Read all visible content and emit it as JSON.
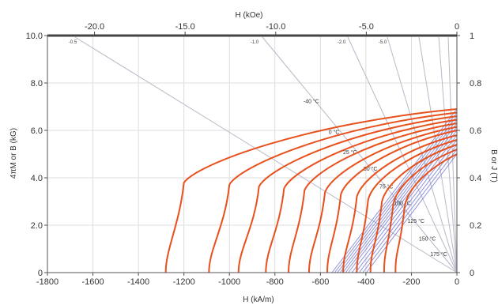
{
  "chart_data": {
    "type": "line",
    "title": "",
    "axes": {
      "x_bottom": {
        "label": "H (kA/m)",
        "ticks": [
          "-1800",
          "-1600",
          "-1400",
          "-1200",
          "-1000",
          "-800",
          "-600",
          "-400",
          "-200",
          "0"
        ],
        "range": [
          -1800,
          0
        ]
      },
      "x_top": {
        "label": "H (kOe)",
        "ticks": [
          "-20.0",
          "-15.0",
          "-10.0",
          "-5.0",
          "0"
        ],
        "range": [
          -22.6,
          0
        ]
      },
      "y_left": {
        "label": "4πM or B (kG)",
        "ticks": [
          "0",
          "2.0",
          "4.0",
          "6.0",
          "8.0",
          "10.0"
        ],
        "range": [
          0,
          10
        ]
      },
      "y_right": {
        "label": "B or J (T)",
        "ticks": [
          "0",
          "0.2",
          "0.4",
          "0.6",
          "0.8",
          "1"
        ],
        "range": [
          0,
          1
        ]
      }
    },
    "grid": true,
    "load_line_labels": [
      "-0.5",
      "-1.0",
      "-2.0",
      "-5.0"
    ],
    "series": [
      {
        "name": "-40 °C",
        "knee_H": -1200,
        "Hc": -1280,
        "Br": 6.9
      },
      {
        "name": "0 °C",
        "knee_H": -1000,
        "Hc": -1090,
        "Br": 6.75
      },
      {
        "name": "25 °C",
        "knee_H": -870,
        "Hc": -960,
        "Br": 6.6
      },
      {
        "name": "50 °C",
        "knee_H": -760,
        "Hc": -840,
        "Br": 6.45
      },
      {
        "name": "75 °C",
        "knee_H": -670,
        "Hc": -740,
        "Br": 6.3
      },
      {
        "name": "100 °C",
        "knee_H": -580,
        "Hc": -650,
        "Br": 6.15
      },
      {
        "name": "125 °C",
        "knee_H": -510,
        "Hc": -570,
        "Br": 6.0
      },
      {
        "name": "150 °C",
        "knee_H": -440,
        "Hc": -500,
        "Br": 5.8
      },
      {
        "name": "175 °C",
        "knee_H": -390,
        "Hc": -440,
        "Br": 5.6
      },
      {
        "name": "",
        "knee_H": -330,
        "Hc": -380,
        "Br": 5.4
      },
      {
        "name": "",
        "knee_H": -280,
        "Hc": -320,
        "Br": 5.2
      },
      {
        "name": "",
        "knee_H": -230,
        "Hc": -270,
        "Br": 5.0
      }
    ],
    "colors": {
      "intrinsic": "#e8501c",
      "normal": "#7b7fd1",
      "load_line": "#b8b8c8",
      "grid": "#dddddd",
      "frame": "#555555"
    }
  }
}
